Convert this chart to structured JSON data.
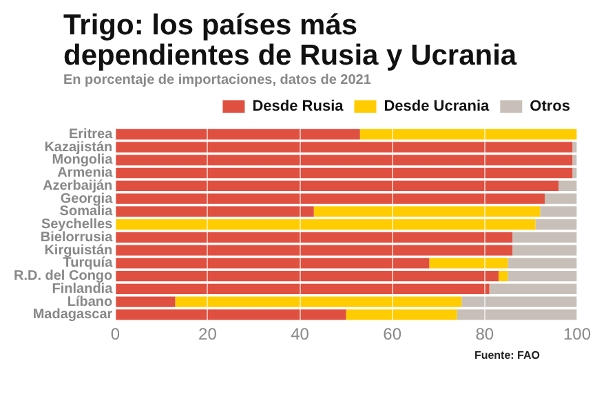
{
  "chart_data": {
    "type": "bar",
    "orientation": "horizontal",
    "stacked": true,
    "title": "Trigo: los países más dependientes de Rusia y Ucrania",
    "subtitle": "En porcentaje de importaciones, datos de 2021",
    "annotations": [
      "Fuente: FAO"
    ],
    "categories": [
      "Eritrea",
      "Kazajistán",
      "Mongolia",
      "Armenia",
      "Azerbaiján",
      "Georgia",
      "Somalia",
      "Seychelles",
      "Bielorrusia",
      "Kirguistán",
      "Turquía",
      "R.D. del Congo",
      "Finlandia",
      "Líbano",
      "Madagascar"
    ],
    "series": [
      {
        "name": "Desde Rusia",
        "color": "#e05040",
        "values": [
          53,
          99,
          99,
          99,
          96,
          93,
          43,
          0,
          86,
          86,
          68,
          83,
          81,
          13,
          50
        ]
      },
      {
        "name": "Desde Ucrania",
        "color": "#ffcc00",
        "values": [
          47,
          0,
          0,
          0,
          0,
          0,
          49,
          91,
          0,
          0,
          17,
          2,
          0,
          62,
          24
        ]
      },
      {
        "name": "Otros",
        "color": "#c8c0b8",
        "values": [
          0,
          1,
          1,
          1,
          4,
          7,
          8,
          9,
          14,
          14,
          15,
          15,
          19,
          25,
          26
        ]
      }
    ],
    "xlim": [
      0,
      100
    ],
    "xticks": [
      0,
      20,
      40,
      60,
      80,
      100
    ],
    "grid": "x",
    "legend": "top"
  }
}
